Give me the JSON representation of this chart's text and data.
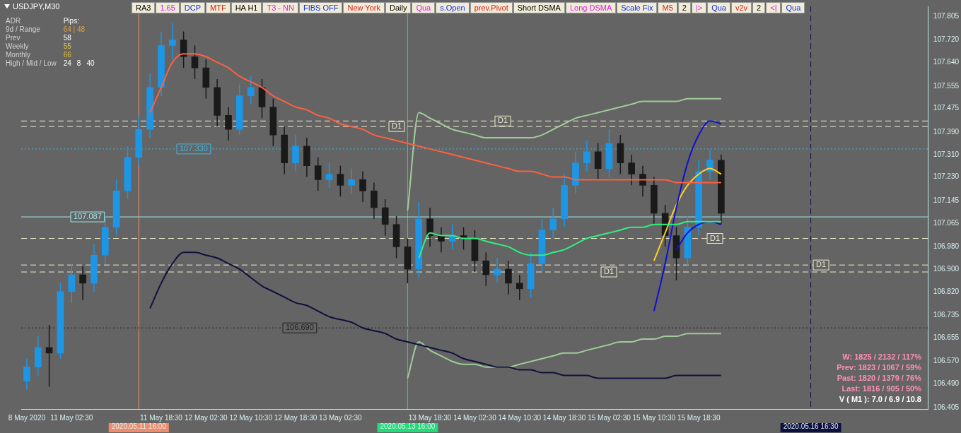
{
  "chart_data": {
    "type": "candlestick",
    "title": "USDJPY,M30",
    "categories": [
      "8 May 2020",
      null,
      null,
      null,
      "11 May 02:30",
      null,
      null,
      null,
      null,
      null,
      "2020.05.11 16:00",
      null,
      "11 May 18:30",
      null,
      null,
      null,
      "12 May 02:30",
      null,
      null,
      null,
      "12 May 10:30",
      null,
      null,
      null,
      "12 May 18:30",
      null,
      null,
      null,
      "13 May 02:30",
      null,
      null,
      null,
      null,
      null,
      "2020.05.13 16:00",
      null,
      "13 May 18:30",
      null,
      null,
      null,
      "14 May 02:30",
      null,
      null,
      null,
      "14 May 10:30",
      null,
      null,
      null,
      "14 May 18:30",
      null,
      null,
      null,
      "15 May 02:30",
      null,
      null,
      null,
      "15 May 10:30",
      null,
      null,
      null,
      "15 May 18:30",
      null,
      null,
      null,
      null,
      null,
      null,
      null,
      null,
      null,
      "2020.05.16 16:30",
      null,
      null,
      null,
      null,
      null,
      null,
      null,
      null,
      null,
      null
    ],
    "ohlc": [
      [
        106.5,
        106.58,
        106.47,
        106.55
      ],
      [
        106.55,
        106.66,
        106.52,
        106.62
      ],
      [
        106.62,
        106.7,
        106.48,
        106.6
      ],
      [
        106.6,
        106.85,
        106.58,
        106.82
      ],
      [
        106.82,
        106.92,
        106.78,
        106.88
      ],
      [
        106.88,
        106.91,
        106.79,
        106.85
      ],
      [
        106.85,
        106.99,
        106.82,
        106.95
      ],
      [
        106.95,
        107.09,
        106.92,
        107.05
      ],
      [
        107.05,
        107.22,
        107.02,
        107.18
      ],
      [
        107.18,
        107.34,
        107.15,
        107.3
      ],
      [
        107.3,
        107.45,
        107.27,
        107.4
      ],
      [
        107.4,
        107.6,
        107.37,
        107.55
      ],
      [
        107.55,
        107.75,
        107.52,
        107.7
      ],
      [
        107.7,
        107.78,
        107.65,
        107.72
      ],
      [
        107.72,
        107.75,
        107.62,
        107.66
      ],
      [
        107.66,
        107.7,
        107.58,
        107.62
      ],
      [
        107.62,
        107.65,
        107.51,
        107.55
      ],
      [
        107.55,
        107.58,
        107.41,
        107.45
      ],
      [
        107.45,
        107.48,
        107.36,
        107.4
      ],
      [
        107.4,
        107.56,
        107.38,
        107.52
      ],
      [
        107.52,
        107.59,
        107.49,
        107.55
      ],
      [
        107.55,
        107.58,
        107.44,
        107.48
      ],
      [
        107.48,
        107.51,
        107.34,
        107.38
      ],
      [
        107.38,
        107.41,
        107.24,
        107.28
      ],
      [
        107.28,
        107.38,
        107.25,
        107.34
      ],
      [
        107.34,
        107.37,
        107.23,
        107.27
      ],
      [
        107.27,
        107.3,
        107.18,
        107.22
      ],
      [
        107.22,
        107.28,
        107.19,
        107.24
      ],
      [
        107.24,
        107.27,
        107.16,
        107.2
      ],
      [
        107.2,
        107.26,
        107.17,
        107.22
      ],
      [
        107.22,
        107.25,
        107.14,
        107.18
      ],
      [
        107.18,
        107.21,
        107.08,
        107.12
      ],
      [
        107.12,
        107.15,
        107.02,
        107.06
      ],
      [
        107.06,
        107.09,
        106.94,
        106.98
      ],
      [
        106.98,
        107.01,
        106.85,
        106.9
      ],
      [
        106.9,
        107.14,
        106.87,
        107.08
      ],
      [
        107.08,
        107.12,
        106.98,
        107.02
      ],
      [
        107.02,
        107.05,
        106.96,
        107.0
      ],
      [
        107.0,
        107.06,
        106.97,
        107.02
      ],
      [
        107.02,
        107.05,
        106.97,
        107.01
      ],
      [
        107.01,
        107.04,
        106.89,
        106.93
      ],
      [
        106.93,
        106.96,
        106.84,
        106.88
      ],
      [
        106.88,
        106.94,
        106.85,
        106.9
      ],
      [
        106.9,
        106.93,
        106.81,
        106.85
      ],
      [
        106.85,
        106.88,
        106.79,
        106.83
      ],
      [
        106.83,
        106.96,
        106.8,
        106.92
      ],
      [
        106.92,
        107.08,
        106.89,
        107.04
      ],
      [
        107.04,
        107.12,
        107.01,
        107.08
      ],
      [
        107.08,
        107.24,
        107.05,
        107.2
      ],
      [
        107.2,
        107.32,
        107.17,
        107.28
      ],
      [
        107.28,
        107.36,
        107.25,
        107.32
      ],
      [
        107.32,
        107.35,
        107.22,
        107.26
      ],
      [
        107.26,
        107.4,
        107.23,
        107.35
      ],
      [
        107.35,
        107.38,
        107.24,
        107.28
      ],
      [
        107.28,
        107.31,
        107.2,
        107.24
      ],
      [
        107.24,
        107.27,
        107.16,
        107.2
      ],
      [
        107.2,
        107.23,
        107.06,
        107.1
      ],
      [
        107.1,
        107.13,
        106.98,
        107.02
      ],
      [
        107.02,
        107.05,
        106.86,
        106.94
      ],
      [
        106.94,
        107.09,
        106.91,
        107.05
      ],
      [
        107.05,
        107.29,
        107.02,
        107.25
      ],
      [
        107.25,
        107.33,
        107.22,
        107.29
      ],
      [
        107.29,
        107.31,
        107.06,
        107.1
      ],
      null,
      null,
      null,
      null,
      null,
      null,
      null,
      null,
      null,
      null,
      null,
      null,
      null,
      null,
      null,
      null,
      null,
      null
    ],
    "colors": [
      "#1e96e6",
      "#1e96e6",
      "#1a1a1a",
      "#1e96e6",
      "#1e96e6",
      "#1a1a1a",
      "#1e96e6",
      "#1e96e6",
      "#1e96e6",
      "#1e96e6",
      "#1e96e6",
      "#1e96e6",
      "#1e96e6",
      "#1e96e6",
      "#1a1a1a",
      "#1a1a1a",
      "#1a1a1a",
      "#1a1a1a",
      "#1a1a1a",
      "#1e96e6",
      "#1e96e6",
      "#1a1a1a",
      "#1a1a1a",
      "#1a1a1a",
      "#1e96e6",
      "#1a1a1a",
      "#1a1a1a",
      "#1e96e6",
      "#1a1a1a",
      "#1e96e6",
      "#1a1a1a",
      "#1a1a1a",
      "#1a1a1a",
      "#1a1a1a",
      "#1a1a1a",
      "#1e96e6",
      "#1a1a1a",
      "#1a1a1a",
      "#1e96e6",
      "#1a1a1a",
      "#1a1a1a",
      "#1a1a1a",
      "#1e96e6",
      "#1a1a1a",
      "#1a1a1a",
      "#1e96e6",
      "#1e96e6",
      "#1e96e6",
      "#1e96e6",
      "#1e96e6",
      "#1e96e6",
      "#1a1a1a",
      "#1e96e6",
      "#1a1a1a",
      "#1a1a1a",
      "#1a1a1a",
      "#1a1a1a",
      "#1a1a1a",
      "#1a1a1a",
      "#1e96e6",
      "#1e96e6",
      "#1e96e6",
      "#1a1a1a",
      null,
      null,
      null,
      null,
      null,
      null,
      null,
      null,
      null,
      null,
      null,
      null,
      null,
      null,
      null,
      null,
      null,
      null
    ],
    "series": [
      {
        "type": "line",
        "color": "#ff6040",
        "values": [
          null,
          null,
          null,
          null,
          null,
          null,
          null,
          null,
          null,
          null,
          null,
          107.46,
          107.55,
          107.64,
          107.67,
          107.67,
          107.66,
          107.64,
          107.62,
          107.59,
          107.57,
          107.55,
          107.52,
          107.5,
          107.48,
          107.47,
          107.45,
          107.44,
          107.42,
          107.41,
          107.4,
          107.38,
          107.37,
          107.36,
          107.35,
          107.34,
          107.33,
          107.32,
          107.31,
          107.3,
          107.29,
          107.28,
          107.27,
          107.26,
          107.25,
          107.25,
          107.24,
          107.23,
          107.23,
          107.22,
          107.22,
          107.22,
          107.22,
          107.22,
          107.22,
          107.22,
          107.22,
          107.22,
          107.21,
          107.21,
          107.21,
          107.21,
          107.21,
          null,
          null,
          null,
          null,
          null,
          null,
          null,
          null,
          null,
          null,
          null,
          null,
          null,
          null,
          null,
          null,
          null,
          null
        ]
      },
      {
        "type": "line",
        "color": "#30f080",
        "values": [
          null,
          null,
          null,
          null,
          null,
          null,
          null,
          null,
          null,
          null,
          null,
          null,
          null,
          null,
          null,
          null,
          null,
          null,
          null,
          null,
          null,
          null,
          null,
          null,
          null,
          null,
          null,
          null,
          null,
          null,
          null,
          null,
          null,
          null,
          null,
          106.94,
          107.03,
          107.02,
          107.02,
          107.01,
          107.01,
          107.0,
          106.99,
          106.98,
          106.96,
          106.95,
          106.95,
          106.96,
          106.97,
          106.99,
          107.01,
          107.02,
          107.03,
          107.04,
          107.05,
          107.05,
          107.06,
          107.06,
          107.06,
          107.07,
          107.07,
          107.07,
          107.07,
          null,
          null,
          null,
          null,
          null,
          null,
          null,
          null,
          null,
          null,
          null,
          null,
          null,
          null,
          null,
          null,
          null,
          null
        ]
      },
      {
        "type": "line",
        "color": "#101040",
        "values": [
          null,
          null,
          null,
          null,
          null,
          null,
          null,
          null,
          null,
          null,
          null,
          106.76,
          106.85,
          106.92,
          106.96,
          106.96,
          106.95,
          106.94,
          106.92,
          106.9,
          106.87,
          106.84,
          106.82,
          106.8,
          106.78,
          106.77,
          106.75,
          106.73,
          106.72,
          106.71,
          106.69,
          106.68,
          106.67,
          106.65,
          106.64,
          106.63,
          106.62,
          106.61,
          106.6,
          106.58,
          106.57,
          106.56,
          106.55,
          106.55,
          106.54,
          106.54,
          106.53,
          106.53,
          106.52,
          106.52,
          106.52,
          106.51,
          106.51,
          106.51,
          106.51,
          106.51,
          106.51,
          106.51,
          106.52,
          106.52,
          106.52,
          106.52,
          106.52,
          null,
          null,
          null,
          null,
          null,
          null,
          null,
          null,
          null,
          null,
          null,
          null,
          null,
          null,
          null,
          null,
          null,
          null
        ]
      },
      {
        "type": "line",
        "color": "#a0cc98",
        "values": [
          null,
          null,
          null,
          null,
          null,
          null,
          null,
          null,
          null,
          null,
          null,
          null,
          null,
          null,
          null,
          null,
          null,
          null,
          null,
          null,
          null,
          null,
          null,
          null,
          null,
          null,
          null,
          null,
          null,
          null,
          null,
          null,
          null,
          null,
          107.11,
          107.46,
          107.44,
          107.42,
          107.4,
          107.39,
          107.38,
          107.37,
          107.37,
          107.37,
          107.37,
          107.37,
          107.38,
          107.4,
          107.42,
          107.44,
          107.45,
          107.46,
          107.47,
          107.48,
          107.49,
          107.5,
          107.5,
          107.5,
          107.5,
          107.51,
          107.51,
          107.51,
          107.51,
          null,
          null,
          null,
          null,
          null,
          null,
          null,
          null,
          null,
          null,
          null,
          null,
          null,
          null,
          null,
          null,
          null,
          null
        ]
      },
      {
        "type": "line",
        "color": "#a0cc98",
        "values": [
          null,
          null,
          null,
          null,
          null,
          null,
          null,
          null,
          null,
          null,
          null,
          null,
          null,
          null,
          null,
          null,
          null,
          null,
          null,
          null,
          null,
          null,
          null,
          null,
          null,
          null,
          null,
          null,
          null,
          null,
          null,
          null,
          null,
          null,
          106.51,
          106.64,
          106.61,
          106.59,
          106.57,
          106.56,
          106.56,
          106.55,
          106.55,
          106.55,
          106.56,
          106.57,
          106.58,
          106.59,
          106.6,
          106.6,
          106.61,
          106.62,
          106.63,
          106.64,
          106.64,
          106.65,
          106.65,
          106.66,
          106.66,
          106.67,
          106.67,
          106.67,
          106.67,
          null,
          null,
          null,
          null,
          null,
          null,
          null,
          null,
          null,
          null,
          null,
          null,
          null,
          null,
          null,
          null,
          null,
          null
        ]
      },
      {
        "type": "line",
        "color": "#1010d0",
        "values": [
          null,
          null,
          null,
          null,
          null,
          null,
          null,
          null,
          null,
          null,
          null,
          null,
          null,
          null,
          null,
          null,
          null,
          null,
          null,
          null,
          null,
          null,
          null,
          null,
          null,
          null,
          null,
          null,
          null,
          null,
          null,
          null,
          null,
          null,
          null,
          null,
          null,
          null,
          null,
          null,
          null,
          null,
          null,
          null,
          null,
          null,
          null,
          null,
          null,
          null,
          null,
          null,
          null,
          null,
          null,
          null,
          106.75,
          106.92,
          107.12,
          107.28,
          107.38,
          107.43,
          107.42,
          null,
          null,
          null,
          null,
          null,
          null,
          null,
          null,
          null,
          null,
          null,
          null,
          null,
          null,
          null,
          null,
          null,
          null
        ]
      },
      {
        "type": "line",
        "color": "#1010d0",
        "values": [
          null,
          null,
          null,
          null,
          null,
          null,
          null,
          null,
          null,
          null,
          null,
          null,
          null,
          null,
          null,
          null,
          null,
          null,
          null,
          null,
          null,
          null,
          null,
          null,
          null,
          null,
          null,
          null,
          null,
          null,
          null,
          null,
          null,
          null,
          null,
          null,
          null,
          null,
          null,
          null,
          null,
          null,
          null,
          null,
          null,
          null,
          null,
          null,
          null,
          null,
          null,
          null,
          null,
          null,
          null,
          null,
          null,
          null,
          106.97,
          107.03,
          107.06,
          107.07,
          107.06,
          null,
          null,
          null,
          null,
          null,
          null,
          null,
          null,
          null,
          null,
          null,
          null,
          null,
          null,
          null,
          null,
          null,
          null
        ]
      },
      {
        "type": "line",
        "color": "#ffd020",
        "values": [
          null,
          null,
          null,
          null,
          null,
          null,
          null,
          null,
          null,
          null,
          null,
          null,
          null,
          null,
          null,
          null,
          null,
          null,
          null,
          null,
          null,
          null,
          null,
          null,
          null,
          null,
          null,
          null,
          null,
          null,
          null,
          null,
          null,
          null,
          null,
          null,
          null,
          null,
          null,
          null,
          null,
          null,
          null,
          null,
          null,
          null,
          null,
          null,
          null,
          null,
          null,
          null,
          null,
          null,
          null,
          null,
          106.93,
          107.03,
          107.13,
          107.2,
          107.24,
          107.26,
          107.24,
          null,
          null,
          null,
          null,
          null,
          null,
          null,
          null,
          null,
          null,
          null,
          null,
          null,
          null,
          null,
          null,
          null,
          null
        ]
      }
    ],
    "ylim": [
      106.4,
      107.84
    ],
    "yticks": [
      {
        "value": 107.805,
        "label": "107.805"
      },
      {
        "value": 107.72,
        "label": "107.720"
      },
      {
        "value": 107.64,
        "label": "107.640"
      },
      {
        "value": 107.555,
        "label": "107.555"
      },
      {
        "value": 107.475,
        "label": "107.475"
      },
      {
        "value": 107.39,
        "label": "107.390"
      },
      {
        "value": 107.31,
        "label": "107.310"
      },
      {
        "value": 107.23,
        "label": "107.230"
      },
      {
        "value": 107.145,
        "label": "107.145"
      },
      {
        "value": 107.065,
        "label": "107.065"
      },
      {
        "value": 106.98,
        "label": "106.980"
      },
      {
        "value": 106.9,
        "label": "106.900"
      },
      {
        "value": 106.82,
        "label": "106.820"
      },
      {
        "value": 106.735,
        "label": "106.735"
      },
      {
        "value": 106.655,
        "label": "106.655"
      },
      {
        "value": 106.57,
        "label": "106.570"
      },
      {
        "value": 106.49,
        "label": "106.490"
      },
      {
        "value": 106.405,
        "label": "106.405"
      }
    ],
    "ref_lines": [
      {
        "axis": "x",
        "value": "2020.05.11 16:00",
        "color": "#f08c6c",
        "line_style": "solid"
      },
      {
        "axis": "x",
        "value": "2020.05.13 16:00",
        "color": "#22dd77",
        "line_style": "solid"
      },
      {
        "axis": "x",
        "value": "2020.05.16 16:30",
        "color": "#101040",
        "line_style": "dashed"
      },
      {
        "axis": "y",
        "value": 107.087,
        "label": "107.087",
        "color": "#a0e8e8",
        "line_style": "solid"
      },
      {
        "axis": "y",
        "value": 107.33,
        "label": "107.330",
        "color": "#40b8e0",
        "line_style": "dotted"
      },
      {
        "axis": "y",
        "value": 106.69,
        "label": "106.690",
        "color": "#202020",
        "line_style": "dotted"
      },
      {
        "axis": "y",
        "value": 107.41,
        "label": "D1",
        "color": "#f0ecd0",
        "line_style": "dashed"
      },
      {
        "axis": "y",
        "value": 107.43,
        "label": "D1",
        "color": "#f0ecd0",
        "line_style": "dashed"
      },
      {
        "axis": "y",
        "value": 106.89,
        "label": "D1",
        "color": "#f0ecd0",
        "line_style": "dashed"
      },
      {
        "axis": "y",
        "value": 107.01,
        "label": "D1",
        "color": "#f0ecd0",
        "line_style": "dashed"
      },
      {
        "axis": "y",
        "value": 106.915,
        "label": "D1",
        "color": "#f0ecd0",
        "line_style": "dashed"
      }
    ],
    "annotations": [
      "RA3",
      "1.65",
      "DCP",
      "MTF",
      "HA H1",
      "T3 - NN",
      "FIBS OFF",
      "New York",
      "Daily",
      "Qua",
      "s.Open",
      "prev.Pivot",
      "Short DSMA",
      "Long DSMA",
      "Scale Fix",
      "M5",
      "2",
      "|>",
      "Qua",
      "v2v",
      "2",
      "<|",
      "Qua",
      "ADR",
      "9d / Range",
      "Prev",
      "Weekly",
      "Monthly",
      "High / Mid / Low",
      "Pips:",
      "64 | 48",
      "58",
      "55",
      "66",
      "24",
      "8",
      "40",
      "W: 1825 / 2132 / 117%",
      "Prev: 1823 / 1067 / 59%",
      "Past: 1820 / 1379 / 76%",
      "Last: 1816 / 905 / 50%",
      "V ( M1 ): 7.0 / 6.9 / 10.8"
    ],
    "grid": false,
    "legend": false,
    "marker": "none",
    "line_style": "solid"
  }
}
